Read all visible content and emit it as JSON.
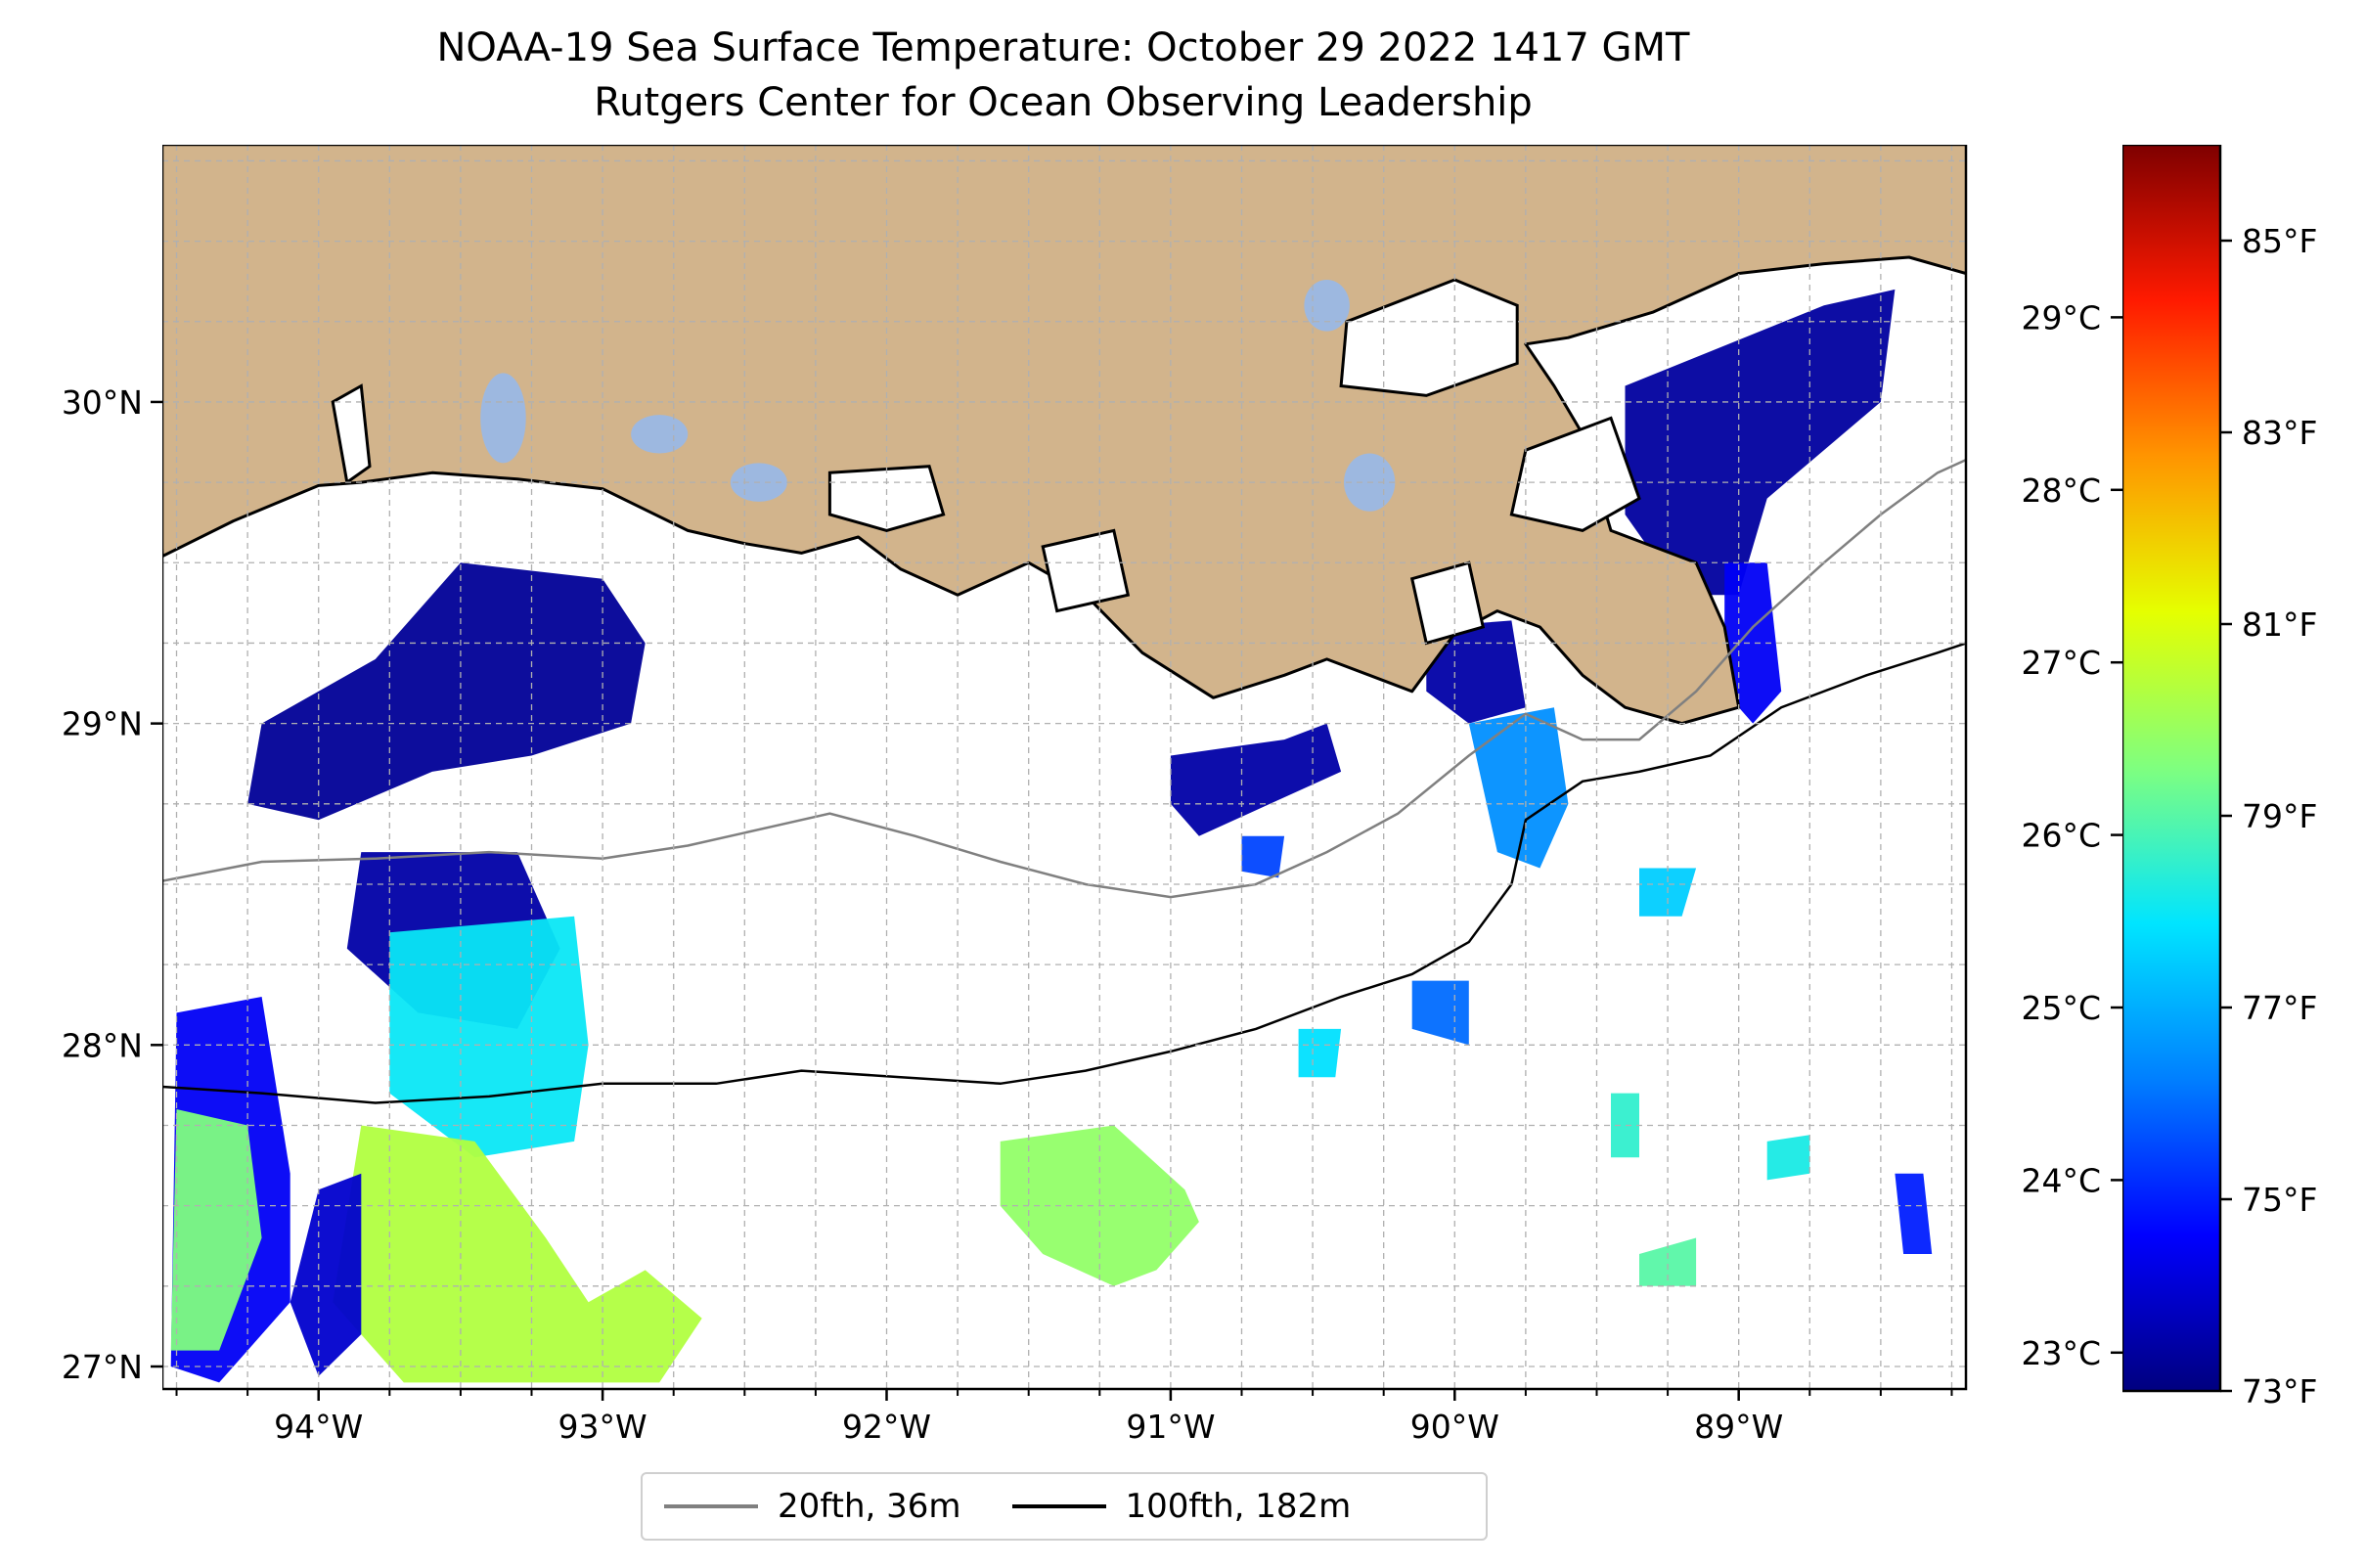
{
  "title_line1": "NOAA-19 Sea Surface Temperature: October 29 2022 1417 GMT",
  "title_line2": "Rutgers Center for Ocean Observing Leadership",
  "colors": {
    "land": "#d2b48c",
    "lakes": "#9db8e0",
    "isobath_20fth": "#808080",
    "isobath_100fth": "#000000",
    "grid": "#b0b0b0"
  },
  "map": {
    "lon_range": [
      -94.55,
      -88.2
    ],
    "lat_range": [
      26.93,
      30.8
    ],
    "x_ticks": [
      {
        "value": -94,
        "label": "94°W"
      },
      {
        "value": -93,
        "label": "93°W"
      },
      {
        "value": -92,
        "label": "92°W"
      },
      {
        "value": -91,
        "label": "91°W"
      },
      {
        "value": -90,
        "label": "90°W"
      },
      {
        "value": -89,
        "label": "89°W"
      }
    ],
    "y_ticks": [
      {
        "value": 27,
        "label": "27°N"
      },
      {
        "value": 28,
        "label": "28°N"
      },
      {
        "value": 29,
        "label": "29°N"
      },
      {
        "value": 30,
        "label": "30°N"
      }
    ],
    "minor_grid_step_deg": 0.25,
    "sst_patches": [
      {
        "name": "west-shelf-cold",
        "temp_f": 73.3,
        "points": [
          [
            -93.5,
            29.5
          ],
          [
            -93.0,
            29.45
          ],
          [
            -92.85,
            29.25
          ],
          [
            -92.9,
            29.0
          ],
          [
            -93.25,
            28.9
          ],
          [
            -93.6,
            28.85
          ],
          [
            -94.0,
            28.7
          ],
          [
            -94.25,
            28.75
          ],
          [
            -94.2,
            29.0
          ],
          [
            -93.8,
            29.2
          ]
        ]
      },
      {
        "name": "west-mid-cold",
        "temp_f": 73.5,
        "points": [
          [
            -93.85,
            28.6
          ],
          [
            -93.3,
            28.6
          ],
          [
            -93.15,
            28.3
          ],
          [
            -93.3,
            28.05
          ],
          [
            -93.65,
            28.1
          ],
          [
            -93.9,
            28.3
          ]
        ]
      },
      {
        "name": "west-mid-cyan",
        "temp_f": 78.0,
        "points": [
          [
            -93.75,
            28.35
          ],
          [
            -93.1,
            28.4
          ],
          [
            -93.05,
            28.0
          ],
          [
            -93.1,
            27.7
          ],
          [
            -93.45,
            27.65
          ],
          [
            -93.75,
            27.85
          ]
        ]
      },
      {
        "name": "west-deep-cold",
        "temp_f": 74.5,
        "points": [
          [
            -94.5,
            28.1
          ],
          [
            -94.2,
            28.15
          ],
          [
            -94.1,
            27.6
          ],
          [
            -94.1,
            27.2
          ],
          [
            -94.35,
            26.95
          ],
          [
            -94.52,
            27.0
          ]
        ]
      },
      {
        "name": "west-deep-green",
        "temp_f": 79.5,
        "points": [
          [
            -94.5,
            27.8
          ],
          [
            -94.25,
            27.75
          ],
          [
            -94.2,
            27.4
          ],
          [
            -94.35,
            27.05
          ],
          [
            -94.52,
            27.05
          ]
        ]
      },
      {
        "name": "southwest-warm",
        "temp_f": 80.3,
        "points": [
          [
            -93.85,
            27.75
          ],
          [
            -93.45,
            27.7
          ],
          [
            -93.2,
            27.4
          ],
          [
            -93.05,
            27.2
          ],
          [
            -92.85,
            27.3
          ],
          [
            -92.65,
            27.15
          ],
          [
            -92.8,
            26.95
          ],
          [
            -93.7,
            26.95
          ],
          [
            -93.95,
            27.2
          ]
        ]
      },
      {
        "name": "southwest-cold-rim",
        "temp_f": 74.0,
        "points": [
          [
            -94.0,
            27.55
          ],
          [
            -93.85,
            27.6
          ],
          [
            -93.85,
            27.1
          ],
          [
            -94.0,
            26.97
          ],
          [
            -94.1,
            27.2
          ]
        ]
      },
      {
        "name": "south-central-green",
        "temp_f": 79.8,
        "points": [
          [
            -91.6,
            27.7
          ],
          [
            -91.2,
            27.75
          ],
          [
            -90.95,
            27.55
          ],
          [
            -90.9,
            27.45
          ],
          [
            -91.05,
            27.3
          ],
          [
            -91.2,
            27.25
          ],
          [
            -91.45,
            27.35
          ],
          [
            -91.6,
            27.5
          ]
        ]
      },
      {
        "name": "plume-nearshore",
        "temp_f": 73.5,
        "points": [
          [
            -91.0,
            28.9
          ],
          [
            -90.6,
            28.95
          ],
          [
            -90.45,
            29.0
          ],
          [
            -90.4,
            28.85
          ],
          [
            -90.65,
            28.75
          ],
          [
            -90.9,
            28.65
          ],
          [
            -91.0,
            28.75
          ]
        ]
      },
      {
        "name": "plume-spot-blue",
        "temp_f": 75.5,
        "points": [
          [
            -90.75,
            28.65
          ],
          [
            -90.6,
            28.65
          ],
          [
            -90.62,
            28.52
          ],
          [
            -90.75,
            28.54
          ]
        ]
      },
      {
        "name": "terrebonne-cold",
        "temp_f": 73.5,
        "points": [
          [
            -90.1,
            29.3
          ],
          [
            -89.8,
            29.32
          ],
          [
            -89.75,
            29.05
          ],
          [
            -89.95,
            29.0
          ],
          [
            -90.1,
            29.1
          ]
        ]
      },
      {
        "name": "delta-mid-blue",
        "temp_f": 76.5,
        "points": [
          [
            -89.95,
            29.0
          ],
          [
            -89.65,
            29.05
          ],
          [
            -89.6,
            28.75
          ],
          [
            -89.7,
            28.55
          ],
          [
            -89.85,
            28.6
          ],
          [
            -89.9,
            28.8
          ]
        ]
      },
      {
        "name": "chandeleur-cold",
        "temp_f": 73.4,
        "points": [
          [
            -89.4,
            30.05
          ],
          [
            -88.7,
            30.3
          ],
          [
            -88.45,
            30.35
          ],
          [
            -88.5,
            30.0
          ],
          [
            -88.9,
            29.7
          ],
          [
            -89.0,
            29.4
          ],
          [
            -89.2,
            29.4
          ],
          [
            -89.4,
            29.65
          ]
        ]
      },
      {
        "name": "birdfoot-blue",
        "temp_f": 74.5,
        "points": [
          [
            -89.05,
            29.5
          ],
          [
            -88.9,
            29.5
          ],
          [
            -88.85,
            29.1
          ],
          [
            -88.95,
            29.0
          ],
          [
            -89.05,
            29.1
          ]
        ]
      },
      {
        "name": "east-shelf-cyan",
        "temp_f": 77.5,
        "points": [
          [
            -89.35,
            28.55
          ],
          [
            -89.15,
            28.55
          ],
          [
            -89.2,
            28.4
          ],
          [
            -89.35,
            28.4
          ]
        ]
      },
      {
        "name": "south-slope-blue",
        "temp_f": 76.0,
        "points": [
          [
            -90.15,
            28.2
          ],
          [
            -89.95,
            28.2
          ],
          [
            -89.95,
            28.0
          ],
          [
            -90.15,
            28.05
          ]
        ]
      },
      {
        "name": "south-slope-cyan",
        "temp_f": 77.8,
        "points": [
          [
            -90.55,
            28.05
          ],
          [
            -90.4,
            28.05
          ],
          [
            -90.42,
            27.9
          ],
          [
            -90.55,
            27.9
          ]
        ]
      },
      {
        "name": "east-deep-green",
        "temp_f": 79.0,
        "points": [
          [
            -89.35,
            27.35
          ],
          [
            -89.15,
            27.4
          ],
          [
            -89.15,
            27.25
          ],
          [
            -89.35,
            27.25
          ]
        ]
      },
      {
        "name": "east-deep-cyan",
        "temp_f": 78.5,
        "points": [
          [
            -89.45,
            27.85
          ],
          [
            -89.35,
            27.85
          ],
          [
            -89.35,
            27.65
          ],
          [
            -89.45,
            27.65
          ]
        ]
      },
      {
        "name": "east-deep-spot",
        "temp_f": 78.2,
        "points": [
          [
            -88.9,
            27.7
          ],
          [
            -88.75,
            27.72
          ],
          [
            -88.75,
            27.6
          ],
          [
            -88.9,
            27.58
          ]
        ]
      },
      {
        "name": "far-east-blue",
        "temp_f": 75.0,
        "points": [
          [
            -88.45,
            27.6
          ],
          [
            -88.35,
            27.6
          ],
          [
            -88.32,
            27.35
          ],
          [
            -88.42,
            27.35
          ]
        ]
      }
    ],
    "lakes": [
      {
        "name": "lake-calcasieu",
        "cx": -93.35,
        "cy": 29.95,
        "rx": 0.08,
        "ry": 0.14
      },
      {
        "name": "grand-lake",
        "cx": -92.8,
        "cy": 29.9,
        "rx": 0.1,
        "ry": 0.06
      },
      {
        "name": "white-lake",
        "cx": -92.45,
        "cy": 29.75,
        "rx": 0.1,
        "ry": 0.06
      },
      {
        "name": "lake-maurepas",
        "cx": -90.45,
        "cy": 30.3,
        "rx": 0.08,
        "ry": 0.08
      },
      {
        "name": "lake-salvador",
        "cx": -90.3,
        "cy": 29.75,
        "rx": 0.09,
        "ry": 0.09
      }
    ],
    "white_water": [
      {
        "name": "lake-pontchartrain",
        "points": [
          [
            -90.38,
            30.25
          ],
          [
            -90.0,
            30.38
          ],
          [
            -89.78,
            30.3
          ],
          [
            -89.78,
            30.12
          ],
          [
            -90.1,
            30.02
          ],
          [
            -90.4,
            30.05
          ]
        ]
      },
      {
        "name": "sabine-lake",
        "points": [
          [
            -93.95,
            30.0
          ],
          [
            -93.85,
            30.05
          ],
          [
            -93.82,
            29.8
          ],
          [
            -93.9,
            29.75
          ]
        ]
      },
      {
        "name": "vermilion-bay",
        "points": [
          [
            -92.2,
            29.78
          ],
          [
            -91.85,
            29.8
          ],
          [
            -91.8,
            29.65
          ],
          [
            -92.0,
            29.6
          ],
          [
            -92.2,
            29.65
          ]
        ]
      },
      {
        "name": "atchafalaya-bay",
        "points": [
          [
            -91.45,
            29.55
          ],
          [
            -91.2,
            29.6
          ],
          [
            -91.15,
            29.4
          ],
          [
            -91.4,
            29.35
          ]
        ]
      },
      {
        "name": "barataria-bay",
        "points": [
          [
            -90.15,
            29.45
          ],
          [
            -89.95,
            29.5
          ],
          [
            -89.9,
            29.3
          ],
          [
            -90.1,
            29.25
          ]
        ]
      },
      {
        "name": "breton-sound",
        "points": [
          [
            -89.75,
            29.85
          ],
          [
            -89.45,
            29.95
          ],
          [
            -89.35,
            29.7
          ],
          [
            -89.55,
            29.6
          ],
          [
            -89.8,
            29.65
          ]
        ]
      }
    ],
    "coastline": [
      [
        -94.55,
        29.52
      ],
      [
        -94.3,
        29.63
      ],
      [
        -94.0,
        29.74
      ],
      [
        -93.85,
        29.75
      ],
      [
        -93.6,
        29.78
      ],
      [
        -93.3,
        29.76
      ],
      [
        -93.0,
        29.73
      ],
      [
        -92.7,
        29.6
      ],
      [
        -92.5,
        29.56
      ],
      [
        -92.3,
        29.53
      ],
      [
        -92.1,
        29.58
      ],
      [
        -91.95,
        29.48
      ],
      [
        -91.75,
        29.4
      ],
      [
        -91.5,
        29.5
      ],
      [
        -91.3,
        29.4
      ],
      [
        -91.1,
        29.22
      ],
      [
        -90.85,
        29.08
      ],
      [
        -90.6,
        29.15
      ],
      [
        -90.45,
        29.2
      ],
      [
        -90.3,
        29.15
      ],
      [
        -90.15,
        29.1
      ],
      [
        -90.0,
        29.28
      ],
      [
        -89.85,
        29.35
      ],
      [
        -89.7,
        29.3
      ],
      [
        -89.55,
        29.15
      ],
      [
        -89.4,
        29.05
      ],
      [
        -89.2,
        29.0
      ],
      [
        -89.0,
        29.05
      ],
      [
        -89.05,
        29.3
      ],
      [
        -89.15,
        29.5
      ],
      [
        -89.3,
        29.55
      ],
      [
        -89.45,
        29.6
      ],
      [
        -89.5,
        29.75
      ],
      [
        -89.55,
        29.9
      ],
      [
        -89.65,
        30.05
      ],
      [
        -89.75,
        30.18
      ],
      [
        -89.6,
        30.2
      ],
      [
        -89.3,
        30.28
      ],
      [
        -89.0,
        30.4
      ],
      [
        -88.7,
        30.43
      ],
      [
        -88.4,
        30.45
      ],
      [
        -88.2,
        30.4
      ]
    ],
    "isobath_20fth": [
      [
        -94.55,
        28.51
      ],
      [
        -94.2,
        28.57
      ],
      [
        -93.8,
        28.58
      ],
      [
        -93.4,
        28.6
      ],
      [
        -93.0,
        28.58
      ],
      [
        -92.7,
        28.62
      ],
      [
        -92.4,
        28.68
      ],
      [
        -92.2,
        28.72
      ],
      [
        -91.9,
        28.65
      ],
      [
        -91.6,
        28.57
      ],
      [
        -91.3,
        28.5
      ],
      [
        -91.0,
        28.46
      ],
      [
        -90.7,
        28.5
      ],
      [
        -90.45,
        28.6
      ],
      [
        -90.2,
        28.72
      ],
      [
        -89.95,
        28.9
      ],
      [
        -89.75,
        29.03
      ],
      [
        -89.55,
        28.95
      ],
      [
        -89.35,
        28.95
      ],
      [
        -89.15,
        29.1
      ],
      [
        -88.95,
        29.3
      ],
      [
        -88.7,
        29.5
      ],
      [
        -88.5,
        29.65
      ],
      [
        -88.3,
        29.78
      ],
      [
        -88.2,
        29.82
      ]
    ],
    "isobath_100fth": [
      [
        -94.55,
        27.87
      ],
      [
        -94.2,
        27.85
      ],
      [
        -93.8,
        27.82
      ],
      [
        -93.4,
        27.84
      ],
      [
        -93.0,
        27.88
      ],
      [
        -92.6,
        27.88
      ],
      [
        -92.3,
        27.92
      ],
      [
        -91.95,
        27.9
      ],
      [
        -91.6,
        27.88
      ],
      [
        -91.3,
        27.92
      ],
      [
        -91.0,
        27.98
      ],
      [
        -90.7,
        28.05
      ],
      [
        -90.4,
        28.15
      ],
      [
        -90.15,
        28.22
      ],
      [
        -89.95,
        28.32
      ],
      [
        -89.8,
        28.5
      ],
      [
        -89.75,
        28.7
      ],
      [
        -89.55,
        28.82
      ],
      [
        -89.35,
        28.85
      ],
      [
        -89.1,
        28.9
      ],
      [
        -88.85,
        29.05
      ],
      [
        -88.55,
        29.15
      ],
      [
        -88.3,
        29.22
      ],
      [
        -88.2,
        29.25
      ]
    ]
  },
  "colorbar": {
    "fahrenheit_range": [
      73,
      86
    ],
    "celsius_ticks": [
      {
        "value": 23,
        "label": "23°C"
      },
      {
        "value": 24,
        "label": "24°C"
      },
      {
        "value": 25,
        "label": "25°C"
      },
      {
        "value": 26,
        "label": "26°C"
      },
      {
        "value": 27,
        "label": "27°C"
      },
      {
        "value": 28,
        "label": "28°C"
      },
      {
        "value": 29,
        "label": "29°C"
      }
    ],
    "fahrenheit_ticks": [
      {
        "value": 73,
        "label": "73°F"
      },
      {
        "value": 75,
        "label": "75°F"
      },
      {
        "value": 77,
        "label": "77°F"
      },
      {
        "value": 79,
        "label": "79°F"
      },
      {
        "value": 81,
        "label": "81°F"
      },
      {
        "value": 83,
        "label": "83°F"
      },
      {
        "value": 85,
        "label": "85°F"
      }
    ],
    "colormap_stops": [
      "#00007f",
      "#0000ff",
      "#007fff",
      "#00e5ff",
      "#7fff7f",
      "#e5ff00",
      "#ff9500",
      "#ff1a00",
      "#7f0000"
    ]
  },
  "legend": {
    "items": [
      {
        "label": "20fth, 36m",
        "color": "#808080"
      },
      {
        "label": "100fth, 182m",
        "color": "#000000"
      }
    ]
  }
}
